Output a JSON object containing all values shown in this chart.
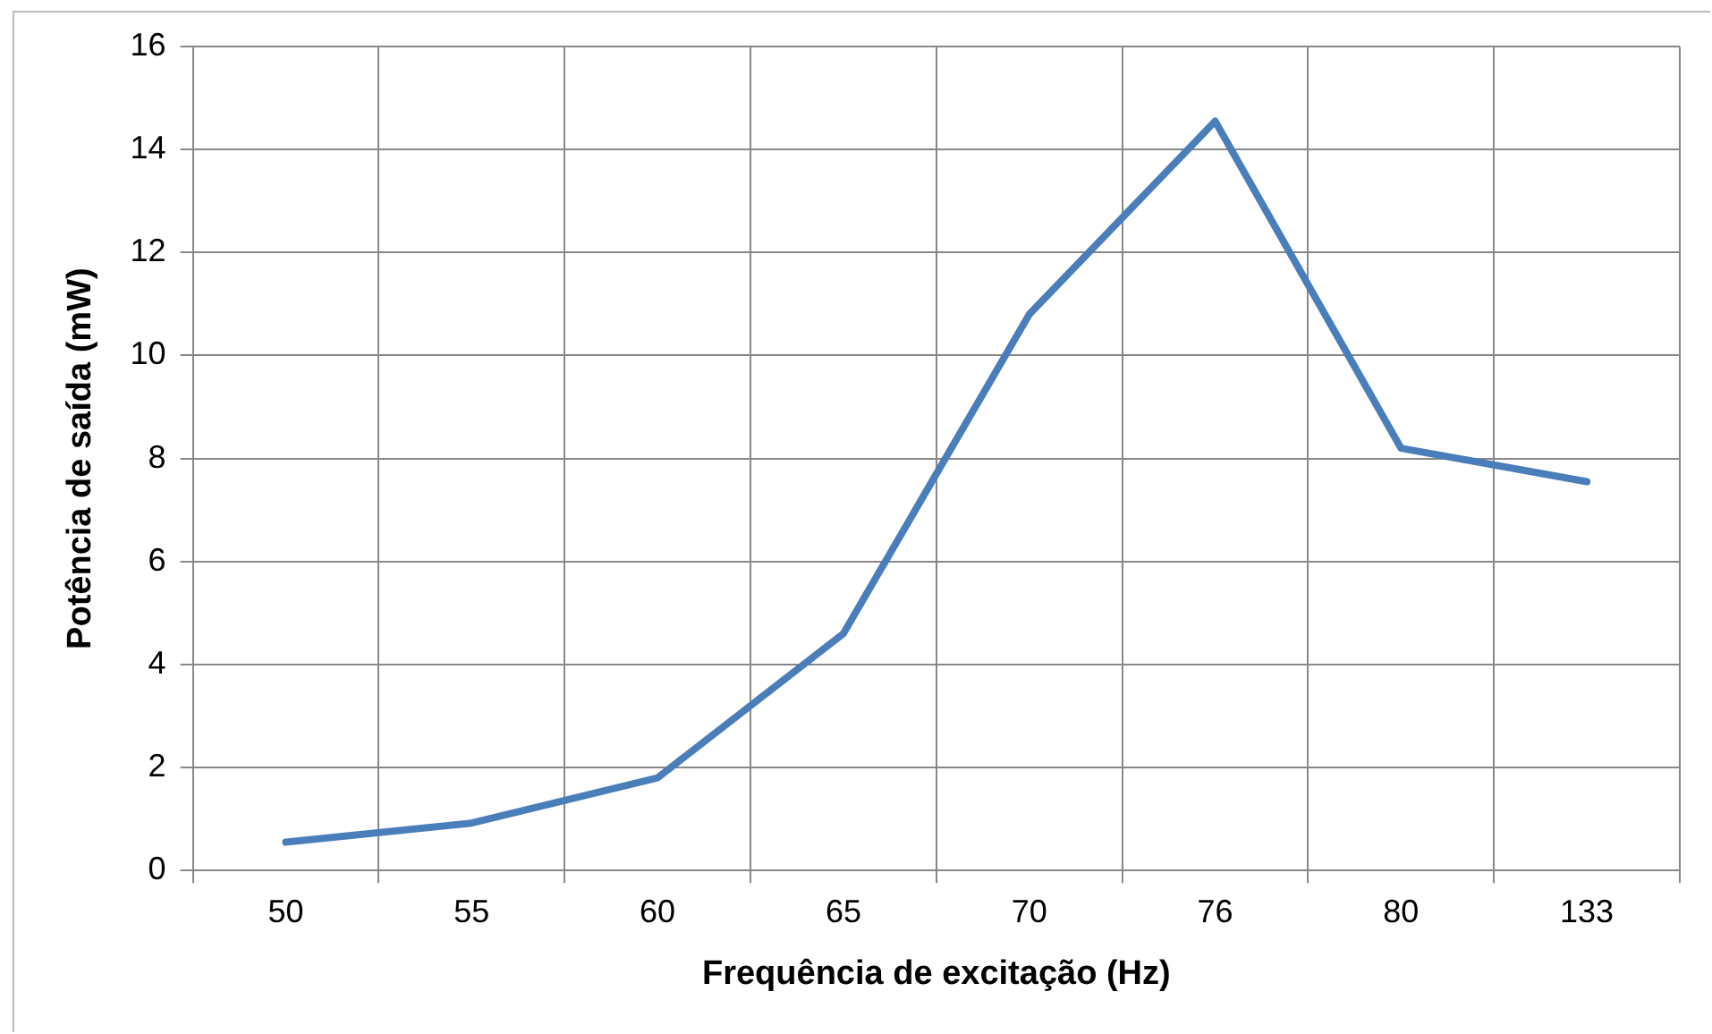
{
  "chart_data": {
    "type": "line",
    "xlabel": "Frequência de excitação (Hz)",
    "ylabel": "Potência de saída (mW)",
    "categories": [
      "50",
      "55",
      "60",
      "65",
      "70",
      "76",
      "80",
      "133"
    ],
    "series": [
      {
        "color": "#4a7ebb",
        "values": [
          0.55,
          0.92,
          1.8,
          4.6,
          10.8,
          14.55,
          8.2,
          7.55
        ]
      }
    ],
    "ylim": [
      0,
      16
    ],
    "yticks": [
      0,
      2,
      4,
      6,
      8,
      10,
      12,
      14,
      16
    ],
    "grid": true,
    "legend": false,
    "marker": "none"
  }
}
